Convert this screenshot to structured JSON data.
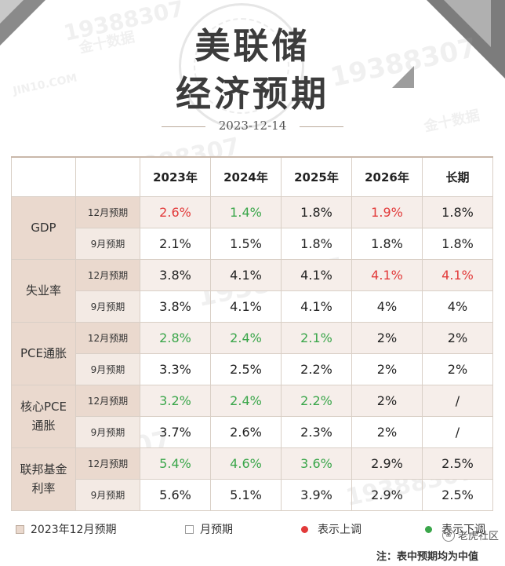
{
  "title_line1": "美联储",
  "title_line2": "经济预期",
  "date": "2023-12-14",
  "columns": [
    "2023年",
    "2024年",
    "2025年",
    "2026年",
    "长期"
  ],
  "categories": [
    {
      "name": "GDP",
      "rows": [
        {
          "label": "12月预期",
          "values": [
            "2.6%",
            "1.4%",
            "1.8%",
            "1.9%",
            "1.8%"
          ],
          "marks": [
            "up",
            "down",
            "",
            "up",
            ""
          ]
        },
        {
          "label": "9月预期",
          "values": [
            "2.1%",
            "1.5%",
            "1.8%",
            "1.8%",
            "1.8%"
          ],
          "marks": [
            "",
            "",
            "",
            "",
            ""
          ]
        }
      ]
    },
    {
      "name": "失业率",
      "rows": [
        {
          "label": "12月预期",
          "values": [
            "3.8%",
            "4.1%",
            "4.1%",
            "4.1%",
            "4.1%"
          ],
          "marks": [
            "",
            "",
            "",
            "up",
            "up"
          ]
        },
        {
          "label": "9月预期",
          "values": [
            "3.8%",
            "4.1%",
            "4.1%",
            "4%",
            "4%"
          ],
          "marks": [
            "",
            "",
            "",
            "",
            ""
          ]
        }
      ]
    },
    {
      "name": "PCE通胀",
      "rows": [
        {
          "label": "12月预期",
          "values": [
            "2.8%",
            "2.4%",
            "2.1%",
            "2%",
            "2%"
          ],
          "marks": [
            "down",
            "down",
            "down",
            "",
            ""
          ]
        },
        {
          "label": "9月预期",
          "values": [
            "3.3%",
            "2.5%",
            "2.2%",
            "2%",
            "2%"
          ],
          "marks": [
            "",
            "",
            "",
            "",
            ""
          ]
        }
      ]
    },
    {
      "name": "核心PCE通胀",
      "name_lines": [
        "核心PCE",
        "通胀"
      ],
      "rows": [
        {
          "label": "12月预期",
          "values": [
            "3.2%",
            "2.4%",
            "2.2%",
            "2%",
            "/"
          ],
          "marks": [
            "down",
            "down",
            "down",
            "",
            ""
          ]
        },
        {
          "label": "9月预期",
          "values": [
            "3.7%",
            "2.6%",
            "2.3%",
            "2%",
            "/"
          ],
          "marks": [
            "",
            "",
            "",
            "",
            ""
          ]
        }
      ]
    },
    {
      "name": "联邦基金利率",
      "name_lines": [
        "联邦基金",
        "利率"
      ],
      "rows": [
        {
          "label": "12月预期",
          "values": [
            "5.4%",
            "4.6%",
            "3.6%",
            "2.9%",
            "2.5%"
          ],
          "marks": [
            "down",
            "down",
            "down",
            "",
            ""
          ]
        },
        {
          "label": "9月预期",
          "values": [
            "5.6%",
            "5.1%",
            "3.9%",
            "2.9%",
            "2.5%"
          ],
          "marks": [
            "",
            "",
            "",
            "",
            ""
          ]
        }
      ]
    }
  ],
  "legend": {
    "dec_label": "2023年12月预期",
    "sep_label": "月预期",
    "up_label": "表示上调",
    "down_label": "表示下调"
  },
  "footnote": "注：表中预期均为中值",
  "brand": "老虎社区",
  "watermark_text": "19388307",
  "watermark_brand": "金十数据",
  "watermark_domain": "JIN10.COM",
  "colors": {
    "accent_bg": "#ead9ce",
    "up": "#e23a3a",
    "down": "#3aa64a"
  }
}
